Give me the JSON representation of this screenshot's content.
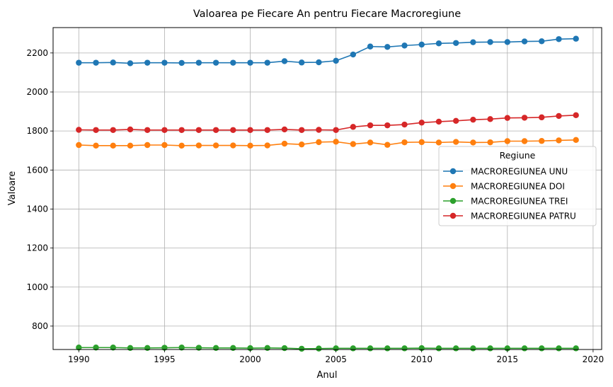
{
  "chart_data": {
    "type": "line",
    "title": "Valoarea pe Fiecare An pentru Fiecare Macroregiune",
    "xlabel": "Anul",
    "ylabel": "Valoare",
    "xlim": [
      1988.5,
      2020.5
    ],
    "ylim": [
      680,
      2330
    ],
    "x_ticks": [
      1990,
      1995,
      2000,
      2005,
      2010,
      2015,
      2020
    ],
    "y_ticks": [
      800,
      1000,
      1200,
      1400,
      1600,
      1800,
      2000,
      2200
    ],
    "grid": true,
    "legend": {
      "title": "Regiune",
      "placement": "center-right"
    },
    "x": [
      1990,
      1991,
      1992,
      1993,
      1994,
      1995,
      1996,
      1997,
      1998,
      1999,
      2000,
      2001,
      2002,
      2003,
      2004,
      2005,
      2006,
      2007,
      2008,
      2009,
      2010,
      2011,
      2012,
      2013,
      2014,
      2015,
      2016,
      2017,
      2018,
      2019
    ],
    "series": [
      {
        "name": "MACROREGIUNEA UNU",
        "color": "#1f77b4",
        "values": [
          2150,
          2150,
          2151,
          2147,
          2150,
          2150,
          2149,
          2150,
          2150,
          2150,
          2150,
          2150,
          2158,
          2151,
          2152,
          2160,
          2192,
          2233,
          2231,
          2238,
          2243,
          2249,
          2251,
          2255,
          2256,
          2256,
          2259,
          2260,
          2271,
          2273
        ]
      },
      {
        "name": "MACROREGIUNEA DOI",
        "color": "#ff7f0e",
        "values": [
          1728,
          1725,
          1725,
          1725,
          1728,
          1728,
          1725,
          1726,
          1726,
          1726,
          1725,
          1726,
          1735,
          1731,
          1743,
          1745,
          1733,
          1741,
          1729,
          1742,
          1743,
          1741,
          1744,
          1741,
          1742,
          1748,
          1748,
          1749,
          1752,
          1754
        ]
      },
      {
        "name": "MACROREGIUNEA TREI",
        "color": "#2ca02c",
        "values": [
          690,
          690,
          690,
          688,
          688,
          689,
          690,
          689,
          688,
          688,
          687,
          688,
          687,
          684,
          685,
          686,
          686,
          686,
          686,
          686,
          687,
          686,
          686,
          686,
          686,
          686,
          686,
          686,
          686,
          686
        ]
      },
      {
        "name": "MACROREGIUNEA PATRU",
        "color": "#d62728",
        "values": [
          1806,
          1805,
          1805,
          1808,
          1805,
          1805,
          1805,
          1805,
          1805,
          1805,
          1805,
          1805,
          1808,
          1805,
          1806,
          1805,
          1821,
          1829,
          1829,
          1833,
          1843,
          1848,
          1852,
          1858,
          1861,
          1867,
          1868,
          1870,
          1877,
          1881
        ]
      }
    ]
  }
}
